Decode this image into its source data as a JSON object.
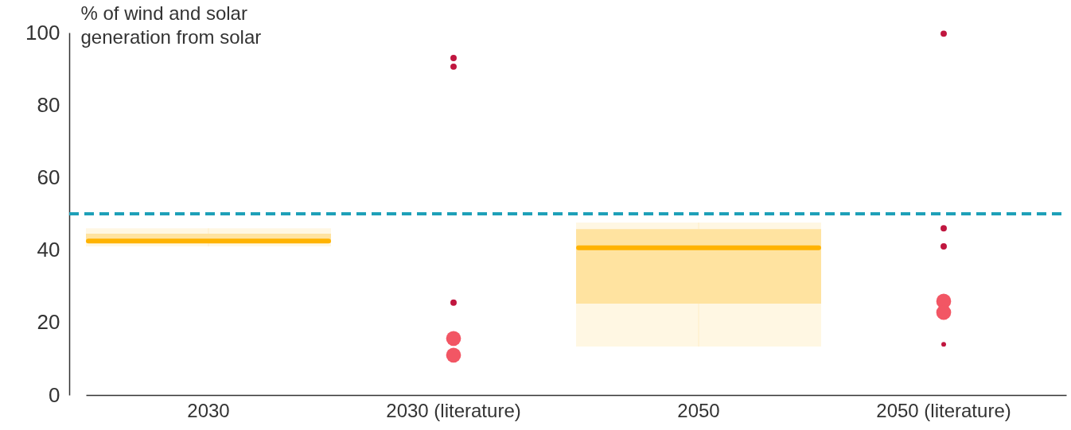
{
  "chart_data": {
    "type": "box",
    "ylabel": "% of wind and solar generation from solar",
    "categories": [
      "2030",
      "2030 (literature)",
      "2050",
      "2050 (literature)"
    ],
    "ylim": [
      0,
      100
    ],
    "yticks": [
      0,
      20,
      40,
      60,
      80,
      100
    ],
    "series": [
      {
        "color": "#ffe3a0",
        "boxes": [
          {
            "low": 41,
            "q1": 42,
            "median": 42.5,
            "q3": 44.5,
            "high": 46
          },
          null,
          {
            "low": 13.4,
            "q1": 25.2,
            "median": 40.6,
            "q3": 45.8,
            "high": 47.6
          },
          null
        ]
      },
      {
        "type": "bubble",
        "x": [
          "2030 (literature)",
          "2030 (literature)",
          "2030 (literature)",
          "2030 (literature)",
          "2030 (literature)",
          "2050 (literature)",
          "2050 (literature)",
          "2050 (literature)",
          "2050 (literature)",
          "2050 (literature)",
          "2050 (literature)"
        ],
        "values": [
          93,
          90.6,
          25.5,
          15.6,
          11,
          99.7,
          46,
          41,
          25.9,
          22.8,
          14
        ],
        "sizes": [
          0.18,
          0.18,
          0.18,
          1,
          1,
          0.18,
          0.18,
          0.18,
          1,
          1,
          0.1
        ],
        "colors": [
          "#c0163f",
          "#c0163f",
          "#c0163f",
          "#f25664",
          "#f25664",
          "#c0163f",
          "#c0163f",
          "#c0163f",
          "#f25664",
          "#f25664",
          "#c0163f"
        ]
      }
    ],
    "ref_lines": [
      {
        "axis": "y",
        "value": 50,
        "color": "#1ea0b8",
        "line_style": "dashed"
      }
    ]
  }
}
